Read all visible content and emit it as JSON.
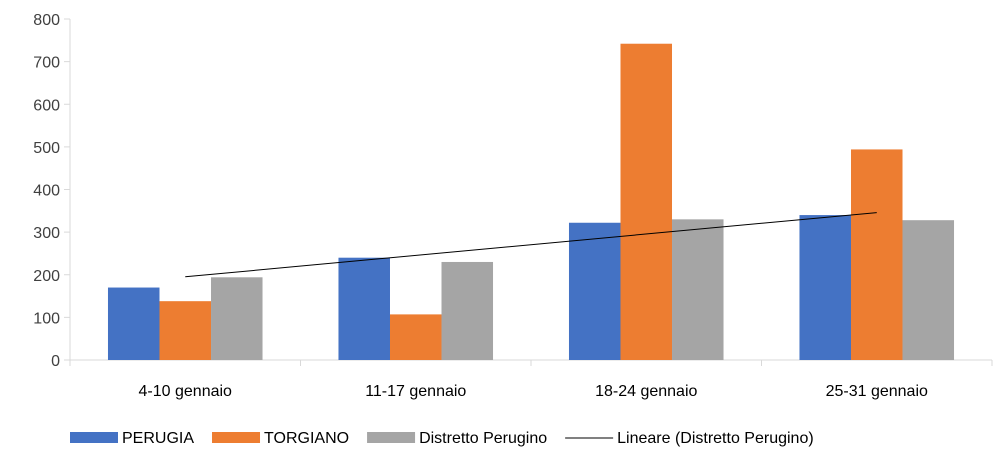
{
  "chart_data": {
    "type": "bar",
    "categories": [
      "4-10 gennaio",
      "11-17 gennaio",
      "18-24 gennaio",
      "25-31 gennaio"
    ],
    "series": [
      {
        "name": "PERUGIA",
        "values": [
          170,
          240,
          322,
          340
        ],
        "color": "#4472C4"
      },
      {
        "name": "TORGIANO",
        "values": [
          138,
          107,
          742,
          494
        ],
        "color": "#ED7D31"
      },
      {
        "name": "Distretto Perugino",
        "values": [
          194,
          230,
          330,
          328
        ],
        "color": "#A5A5A5"
      }
    ],
    "trendline": {
      "name": "Lineare (Distretto Perugino)",
      "of_series": "Distretto Perugino",
      "type": "linear",
      "color": "#000000"
    },
    "ylim": [
      0,
      800
    ],
    "yticks": [
      0,
      100,
      200,
      300,
      400,
      500,
      600,
      700,
      800
    ],
    "grid": false,
    "legend_position": "bottom",
    "title": "",
    "xlabel": "",
    "ylabel": ""
  }
}
